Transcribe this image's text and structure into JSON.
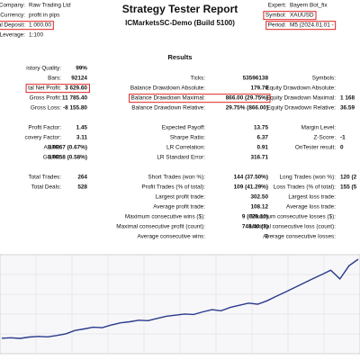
{
  "header": {
    "title": "Strategy Tester Report",
    "server": "ICMarketsSC-Demo (Build 5100)",
    "left": [
      {
        "label": "Company:",
        "value": "Raw Trading Ltd"
      },
      {
        "label": "Currency:",
        "value": "profit in pips"
      },
      {
        "label": "itial Deposit:",
        "value": "1 000.00",
        "boxed": true
      },
      {
        "label": "Leverage:",
        "value": "1:100"
      }
    ],
    "right": [
      {
        "label": "Expert:",
        "value": "Bayern Bot_fix"
      },
      {
        "label": "Symbol:",
        "value": "XAUUSD",
        "boxed": true
      },
      {
        "label": "Period:",
        "value": "M5 (2024.01.01 -",
        "boxed": true
      }
    ]
  },
  "results": {
    "heading": "Results",
    "rows": [
      [
        {
          "label": "istory Quality:",
          "value": "99%"
        },
        null,
        null
      ],
      [
        {
          "label": "Bars:",
          "value": "92124"
        },
        {
          "label": "Ticks:",
          "value": "53596138"
        },
        {
          "label": "Symbols:",
          "value": null
        }
      ],
      [
        {
          "label": "tal Net Profit:",
          "value": "3 629.60",
          "boxed": true
        },
        {
          "label": "Balance Drawdown Absolute:",
          "value": "179.70"
        },
        {
          "label": "Equity Drawdown Absolute:",
          "value": null
        }
      ],
      [
        {
          "label": "Gross Profit:",
          "value": "11 785.40"
        },
        {
          "label": "Balance Drawdown Maximal:",
          "value": "866.00 (29.75%)",
          "boxed": true
        },
        {
          "label": "Equity Drawdown Maximal:",
          "value": "1 168"
        }
      ],
      [
        {
          "label": "Gross Loss:",
          "value": "-8 155.80"
        },
        {
          "label": "Balance Drawdown Relative:",
          "value": "29.75% (866.00)"
        },
        {
          "label": "Equity Drawdown Relative:",
          "value": "36.59"
        }
      ],
      null,
      [
        {
          "label": "Profit Factor:",
          "value": "1.45"
        },
        {
          "label": "Expected Payoff:",
          "value": "13.75"
        },
        {
          "label": "Margin Level:",
          "value": null
        }
      ],
      [
        {
          "label": "covery Factor:",
          "value": "3.11"
        },
        {
          "label": "Sharpe Ratio:",
          "value": "6.37"
        },
        {
          "label": "Z-Score:",
          "value": "-1"
        }
      ],
      [
        {
          "label": "AHPR:",
          "value": "1.0067 (0.67%)"
        },
        {
          "label": "LR Correlation:",
          "value": "0.91"
        },
        {
          "label": "OnTester result:",
          "value": "0"
        }
      ],
      [
        {
          "label": "GHPR:",
          "value": "1.0058 (0.58%)"
        },
        {
          "label": "LR Standard Error:",
          "value": "316.71"
        },
        null
      ],
      null,
      [
        {
          "label": "Total Trades:",
          "value": "264"
        },
        {
          "label": "Short Trades (won %):",
          "value": "144 (37.50%)"
        },
        {
          "label": "Long Trades (won %):",
          "value": "120 (2"
        }
      ],
      [
        {
          "label": "Total Deals:",
          "value": "528"
        },
        {
          "label": "Profit Trades (% of total):",
          "value": "109 (41.29%)"
        },
        {
          "label": "Loss Trades (% of total):",
          "value": "155 (5"
        }
      ],
      [
        null,
        {
          "label": "Largest profit trade:",
          "value": "302.50"
        },
        {
          "label": "Largest loss trade:",
          "value": null
        }
      ],
      [
        null,
        {
          "label": "Average profit trade:",
          "value": "108.12"
        },
        {
          "label": "Average loss trade:",
          "value": null
        }
      ],
      [
        null,
        {
          "label": "Maximum consecutive wins ($):",
          "value": "9 (629.10)"
        },
        {
          "label": "Maximum consecutive losses ($):",
          "value": null
        }
      ],
      [
        null,
        {
          "label": "Maximal consecutive profit (count):",
          "value": "748.40 (3)"
        },
        {
          "label": "Maximal consecutive loss (count):",
          "value": null
        }
      ],
      [
        null,
        {
          "label": "Average consecutive wins:",
          "value": "2"
        },
        {
          "label": "Average consecutive losses:",
          "value": null
        }
      ]
    ]
  },
  "graph": {
    "color": "#2a3a8c",
    "values": [
      1000,
      1020,
      990,
      1050,
      1080,
      1060,
      1120,
      1200,
      1350,
      1420,
      1500,
      1480,
      1600,
      1700,
      1750,
      1820,
      1800,
      1900,
      2000,
      2050,
      2100,
      2080,
      2200,
      2300,
      2250,
      2400,
      2500,
      2600,
      2550,
      2700,
      2900,
      3100,
      3300,
      3500,
      3700,
      3900,
      4100,
      3700,
      4300,
      4600
    ]
  }
}
